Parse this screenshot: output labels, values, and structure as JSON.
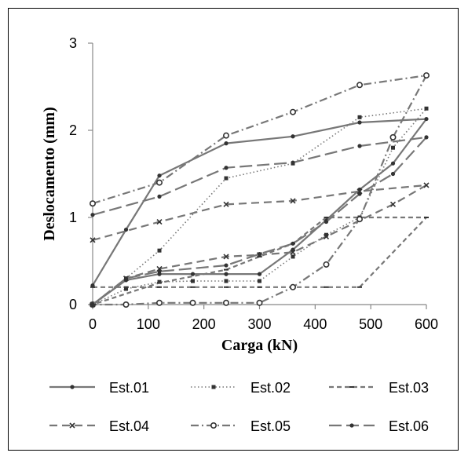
{
  "chart_data": {
    "type": "line",
    "title": "",
    "xlabel": "Carga (kN)",
    "ylabel": "Deslocamento (mm)",
    "xlim": [
      0,
      600
    ],
    "ylim": [
      0,
      3
    ],
    "xticks": [
      0,
      100,
      200,
      300,
      400,
      500,
      600
    ],
    "yticks": [
      0,
      1,
      2,
      3
    ],
    "grid": false,
    "legend_position": "bottom",
    "series": [
      {
        "name": "Est.01",
        "color": "#777777",
        "dash": "solid",
        "marker": "dot",
        "points": [
          [
            0,
            0.22
          ],
          [
            60,
            0.86
          ],
          [
            120,
            1.48
          ],
          [
            240,
            1.85
          ],
          [
            360,
            1.93
          ],
          [
            480,
            2.09
          ],
          [
            600,
            2.13
          ],
          [
            540,
            1.62
          ],
          [
            480,
            1.32
          ],
          [
            420,
            0.97
          ],
          [
            360,
            0.63
          ],
          [
            300,
            0.35
          ],
          [
            240,
            0.35
          ],
          [
            180,
            0.35
          ],
          [
            120,
            0.35
          ],
          [
            60,
            0.28
          ],
          [
            0,
            0
          ]
        ]
      },
      {
        "name": "Est.02",
        "color": "#777777",
        "dash": "dotted",
        "marker": "square",
        "points": [
          [
            0,
            0
          ],
          [
            60,
            0.3
          ],
          [
            120,
            0.62
          ],
          [
            240,
            1.45
          ],
          [
            360,
            1.62
          ],
          [
            480,
            2.15
          ],
          [
            600,
            2.25
          ],
          [
            540,
            1.8
          ],
          [
            480,
            1.0
          ],
          [
            420,
            0.8
          ],
          [
            360,
            0.55
          ],
          [
            300,
            0.27
          ],
          [
            240,
            0.27
          ],
          [
            180,
            0.27
          ],
          [
            120,
            0.26
          ],
          [
            60,
            0.18
          ],
          [
            0,
            0
          ]
        ]
      },
      {
        "name": "Est.03",
        "color": "#777777",
        "dash": "dashed",
        "marker": "dash",
        "points": [
          [
            0,
            0.2
          ],
          [
            60,
            0.2
          ],
          [
            120,
            0.2
          ],
          [
            180,
            0.2
          ],
          [
            240,
            0.2
          ],
          [
            300,
            0.2
          ],
          [
            360,
            0.2
          ],
          [
            420,
            0.2
          ],
          [
            480,
            0.2
          ],
          [
            600,
            1.0
          ],
          [
            480,
            1.0
          ],
          [
            420,
            1.0
          ],
          [
            360,
            0.7
          ],
          [
            300,
            0.55
          ],
          [
            240,
            0.4
          ],
          [
            120,
            0.25
          ],
          [
            0,
            0
          ]
        ]
      },
      {
        "name": "Est.04",
        "color": "#777777",
        "dash": "longdash",
        "marker": "cross",
        "points": [
          [
            0,
            0.74
          ],
          [
            120,
            0.95
          ],
          [
            240,
            1.15
          ],
          [
            360,
            1.19
          ],
          [
            480,
            1.3
          ],
          [
            600,
            1.37
          ],
          [
            540,
            1.15
          ],
          [
            420,
            0.78
          ],
          [
            360,
            0.6
          ],
          [
            300,
            0.57
          ],
          [
            240,
            0.55
          ],
          [
            120,
            0.41
          ],
          [
            60,
            0.3
          ],
          [
            0,
            0
          ]
        ]
      },
      {
        "name": "Est.05",
        "color": "#777777",
        "dash": "dashdot",
        "marker": "circle",
        "points": [
          [
            0,
            1.16
          ],
          [
            120,
            1.4
          ],
          [
            240,
            1.94
          ],
          [
            360,
            2.21
          ],
          [
            480,
            2.52
          ],
          [
            600,
            2.63
          ],
          [
            540,
            1.92
          ],
          [
            480,
            0.98
          ],
          [
            420,
            0.46
          ],
          [
            360,
            0.2
          ],
          [
            300,
            0.02
          ],
          [
            240,
            0.02
          ],
          [
            180,
            0.02
          ],
          [
            120,
            0.02
          ],
          [
            60,
            0.0
          ],
          [
            0,
            0
          ]
        ]
      },
      {
        "name": "Est.06",
        "color": "#777777",
        "dash": "longdash2",
        "marker": "dot",
        "points": [
          [
            0,
            1.03
          ],
          [
            120,
            1.24
          ],
          [
            240,
            1.57
          ],
          [
            360,
            1.63
          ],
          [
            480,
            1.82
          ],
          [
            600,
            1.92
          ],
          [
            540,
            1.5
          ],
          [
            480,
            1.27
          ],
          [
            420,
            0.95
          ],
          [
            360,
            0.7
          ],
          [
            300,
            0.58
          ],
          [
            240,
            0.45
          ],
          [
            120,
            0.38
          ],
          [
            60,
            0.3
          ],
          [
            0,
            0
          ]
        ]
      }
    ]
  }
}
